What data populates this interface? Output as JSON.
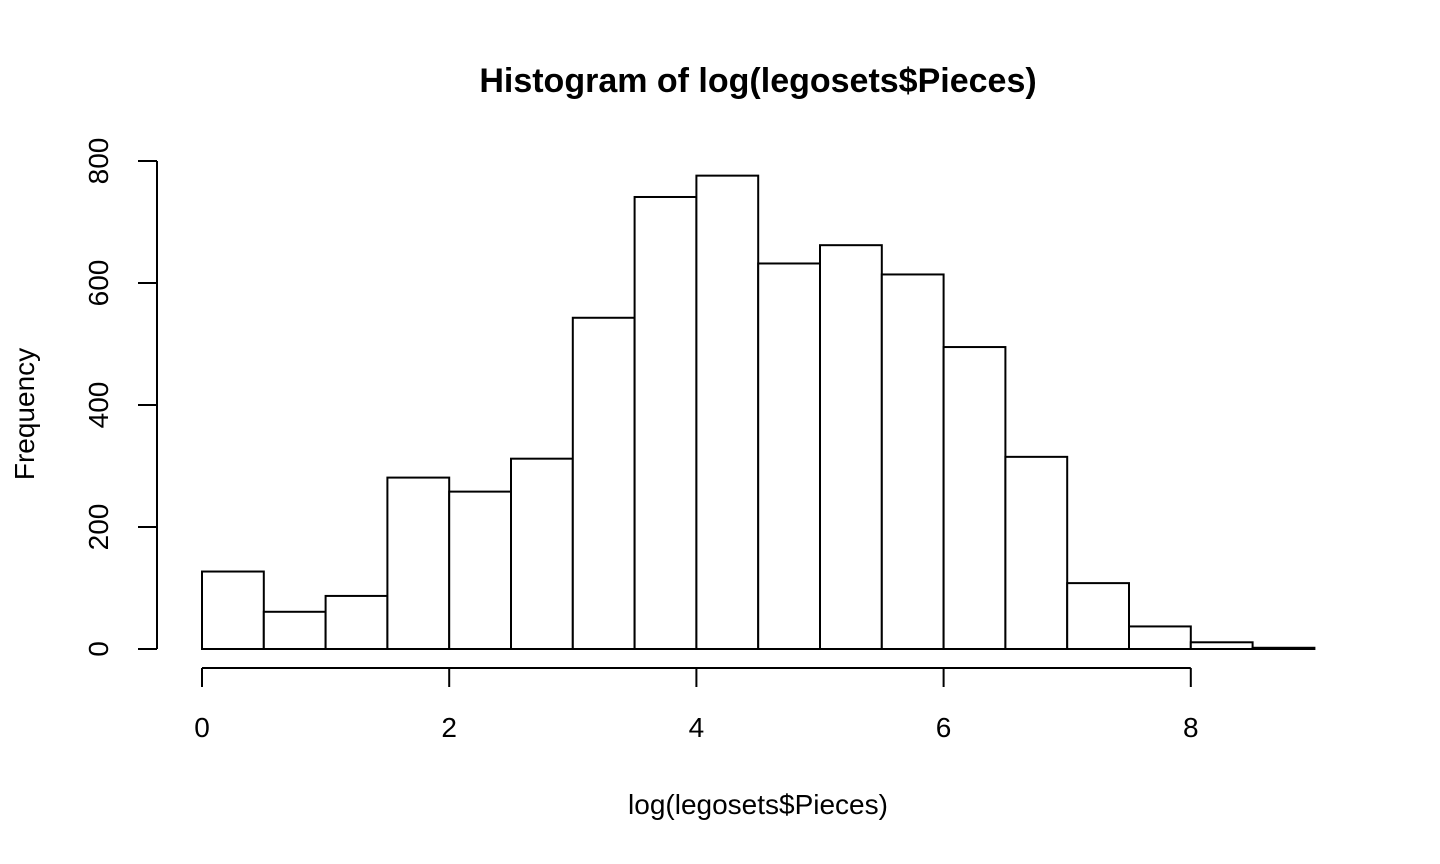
{
  "chart_data": {
    "type": "bar",
    "title": "Histogram of log(legosets$Pieces)",
    "xlabel": "log(legosets$Pieces)",
    "ylabel": "Frequency",
    "xlim": [
      0,
      9
    ],
    "ylim": [
      0,
      800
    ],
    "x_ticks": [
      "0",
      "2",
      "4",
      "6",
      "8"
    ],
    "y_ticks": [
      "0",
      "200",
      "400",
      "600",
      "800"
    ],
    "bin_width": 0.5,
    "bins": [
      {
        "start": 0.0,
        "end": 0.5,
        "value": 127
      },
      {
        "start": 0.5,
        "end": 1.0,
        "value": 61
      },
      {
        "start": 1.0,
        "end": 1.5,
        "value": 87
      },
      {
        "start": 1.5,
        "end": 2.0,
        "value": 281
      },
      {
        "start": 2.0,
        "end": 2.5,
        "value": 258
      },
      {
        "start": 2.5,
        "end": 3.0,
        "value": 312
      },
      {
        "start": 3.0,
        "end": 3.5,
        "value": 543
      },
      {
        "start": 3.5,
        "end": 4.0,
        "value": 741
      },
      {
        "start": 4.0,
        "end": 4.5,
        "value": 776
      },
      {
        "start": 4.5,
        "end": 5.0,
        "value": 632
      },
      {
        "start": 5.0,
        "end": 5.5,
        "value": 662
      },
      {
        "start": 5.5,
        "end": 6.0,
        "value": 614
      },
      {
        "start": 6.0,
        "end": 6.5,
        "value": 495
      },
      {
        "start": 6.5,
        "end": 7.0,
        "value": 315
      },
      {
        "start": 7.0,
        "end": 7.5,
        "value": 108
      },
      {
        "start": 7.5,
        "end": 8.0,
        "value": 37
      },
      {
        "start": 8.0,
        "end": 8.5,
        "value": 11
      },
      {
        "start": 8.5,
        "end": 9.0,
        "value": 2
      }
    ],
    "grid": false,
    "bar_fill": "#ffffff",
    "bar_stroke": "#000000"
  }
}
